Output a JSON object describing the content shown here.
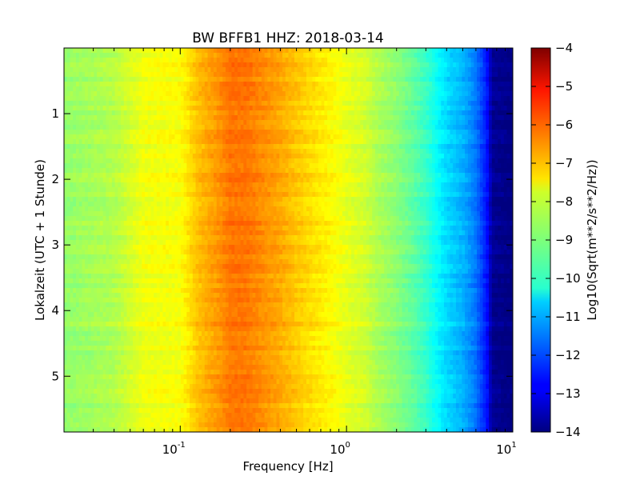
{
  "chart_data": {
    "type": "heatmap",
    "title": "BW BFFB1 HHZ: 2018-03-14",
    "xlabel": "Frequency [Hz]",
    "ylabel": "Lokalzeit (UTC + 1 Stunde)",
    "colorbar_label": "Log10(Sqrt(m**2/s**2/Hz))",
    "x_scale": "log",
    "xlim": [
      0.02,
      10
    ],
    "x_ticks": [
      {
        "value": 0.1,
        "base": "10",
        "exp": "-1"
      },
      {
        "value": 1,
        "base": "10",
        "exp": "0"
      },
      {
        "value": 10,
        "base": "10",
        "exp": "1"
      }
    ],
    "ylim": [
      0.0,
      5.85
    ],
    "y_inverted": true,
    "y_ticks": [
      {
        "value": 1,
        "label": "1"
      },
      {
        "value": 2,
        "label": "2"
      },
      {
        "value": 3,
        "label": "3"
      },
      {
        "value": 4,
        "label": "4"
      },
      {
        "value": 5,
        "label": "5"
      }
    ],
    "colorbar_range": [
      -14,
      -4
    ],
    "colorbar_ticks": [
      {
        "value": -4,
        "label": "−4"
      },
      {
        "value": -5,
        "label": "−5"
      },
      {
        "value": -6,
        "label": "−6"
      },
      {
        "value": -7,
        "label": "−7"
      },
      {
        "value": -8,
        "label": "−8"
      },
      {
        "value": -9,
        "label": "−9"
      },
      {
        "value": -10,
        "label": "−10"
      },
      {
        "value": -11,
        "label": "−11"
      },
      {
        "value": -12,
        "label": "−12"
      },
      {
        "value": -13,
        "label": "−13"
      },
      {
        "value": -14,
        "label": "−14"
      }
    ],
    "colormap": "jet",
    "grid": false,
    "spectrum_profile": {
      "frequency_hz": [
        0.02,
        0.04,
        0.06,
        0.1,
        0.13,
        0.17,
        0.2,
        0.25,
        0.3,
        0.4,
        0.5,
        0.6,
        0.8,
        1.0,
        1.3,
        1.5,
        2.0,
        2.5,
        3.0,
        3.5,
        4.0,
        5.0,
        6.0,
        7.0,
        7.5,
        10.0
      ],
      "log10_amplitude": [
        -8.8,
        -8.5,
        -7.9,
        -7.8,
        -7.1,
        -6.7,
        -6.4,
        -6.4,
        -6.6,
        -6.9,
        -7.2,
        -7.4,
        -7.7,
        -8.0,
        -8.2,
        -8.5,
        -8.9,
        -9.3,
        -9.7,
        -10.2,
        -10.6,
        -11.0,
        -11.6,
        -12.6,
        -13.8,
        -14.0
      ]
    }
  }
}
